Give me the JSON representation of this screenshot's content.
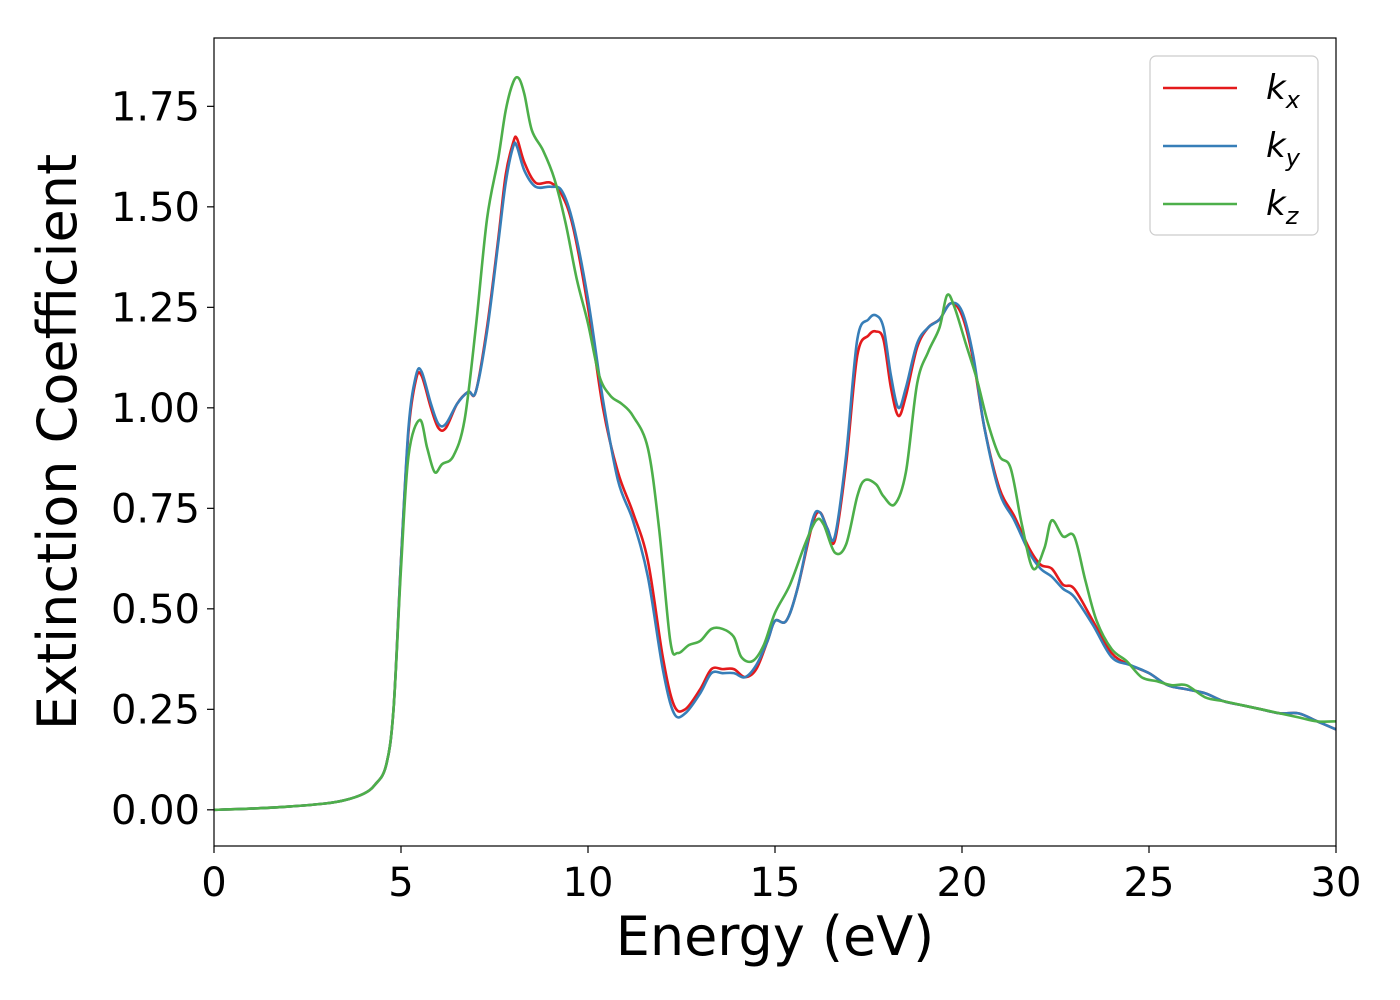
{
  "chart_data": {
    "type": "line",
    "title": "",
    "xlabel": "Energy (eV)",
    "ylabel": "Extinction Coefficient",
    "xlim": [
      0,
      30
    ],
    "ylim": [
      -0.09,
      1.92
    ],
    "xticks": [
      0,
      5,
      10,
      15,
      20,
      25,
      30
    ],
    "xtick_labels": [
      "0",
      "5",
      "10",
      "15",
      "20",
      "25",
      "30"
    ],
    "yticks": [
      0.0,
      0.25,
      0.5,
      0.75,
      1.0,
      1.25,
      1.5,
      1.75
    ],
    "ytick_labels": [
      "0.00",
      "0.25",
      "0.50",
      "0.75",
      "1.00",
      "1.25",
      "1.50",
      "1.75"
    ],
    "grid": false,
    "legend_position": "top-right",
    "series": [
      {
        "name": "k_x",
        "legend_base": "k",
        "legend_sub": "x",
        "color": "#e41a1c",
        "x": [
          0,
          1,
          2,
          3,
          3.5,
          4,
          4.3,
          4.6,
          4.8,
          5.0,
          5.2,
          5.4,
          5.55,
          5.8,
          6.0,
          6.2,
          6.5,
          6.8,
          7.0,
          7.3,
          7.6,
          7.8,
          8.0,
          8.1,
          8.3,
          8.6,
          9.0,
          9.3,
          9.6,
          10.0,
          10.4,
          10.8,
          11.2,
          11.6,
          12.0,
          12.3,
          12.6,
          13.0,
          13.3,
          13.6,
          13.9,
          14.2,
          14.5,
          14.8,
          15.0,
          15.3,
          15.6,
          16.0,
          16.2,
          16.4,
          16.6,
          16.9,
          17.2,
          17.5,
          17.7,
          17.9,
          18.1,
          18.3,
          18.5,
          18.8,
          19.1,
          19.4,
          19.7,
          20.0,
          20.3,
          20.6,
          21.0,
          21.4,
          21.8,
          22.1,
          22.4,
          22.7,
          23.0,
          23.5,
          24.0,
          24.5,
          25.0,
          25.5,
          26.0,
          26.5,
          27.0,
          27.5,
          28.0,
          28.5,
          29.0,
          29.5,
          30
        ],
        "y": [
          0.0,
          0.003,
          0.008,
          0.016,
          0.024,
          0.04,
          0.062,
          0.11,
          0.25,
          0.62,
          0.94,
          1.07,
          1.08,
          1.0,
          0.95,
          0.95,
          1.01,
          1.04,
          1.04,
          1.2,
          1.42,
          1.58,
          1.66,
          1.67,
          1.61,
          1.56,
          1.56,
          1.53,
          1.45,
          1.25,
          1.0,
          0.84,
          0.74,
          0.62,
          0.38,
          0.26,
          0.25,
          0.3,
          0.35,
          0.35,
          0.35,
          0.33,
          0.35,
          0.42,
          0.47,
          0.47,
          0.55,
          0.71,
          0.74,
          0.7,
          0.67,
          0.86,
          1.13,
          1.18,
          1.19,
          1.17,
          1.05,
          0.98,
          1.03,
          1.15,
          1.2,
          1.22,
          1.26,
          1.23,
          1.12,
          0.95,
          0.8,
          0.73,
          0.65,
          0.61,
          0.6,
          0.56,
          0.55,
          0.47,
          0.39,
          0.36,
          0.34,
          0.31,
          0.3,
          0.29,
          0.27,
          0.26,
          0.25,
          0.24,
          0.24,
          0.22,
          0.2
        ]
      },
      {
        "name": "k_y",
        "legend_base": "k",
        "legend_sub": "y",
        "color": "#377eb8",
        "x": [
          0,
          1,
          2,
          3,
          3.5,
          4,
          4.3,
          4.6,
          4.8,
          5.0,
          5.2,
          5.4,
          5.55,
          5.8,
          6.0,
          6.2,
          6.5,
          6.8,
          7.0,
          7.3,
          7.6,
          7.8,
          8.0,
          8.1,
          8.3,
          8.6,
          9.0,
          9.3,
          9.6,
          10.0,
          10.4,
          10.8,
          11.2,
          11.6,
          12.0,
          12.3,
          12.6,
          13.0,
          13.3,
          13.6,
          13.9,
          14.2,
          14.5,
          14.8,
          15.0,
          15.3,
          15.6,
          16.0,
          16.2,
          16.4,
          16.6,
          16.9,
          17.2,
          17.5,
          17.7,
          17.9,
          18.1,
          18.3,
          18.5,
          18.8,
          19.1,
          19.4,
          19.7,
          20.0,
          20.3,
          20.6,
          21.0,
          21.4,
          21.8,
          22.1,
          22.4,
          22.7,
          23.0,
          23.5,
          24.0,
          24.5,
          25.0,
          25.5,
          26.0,
          26.5,
          27.0,
          27.5,
          28.0,
          28.5,
          29.0,
          29.5,
          30
        ],
        "y": [
          0.0,
          0.003,
          0.008,
          0.016,
          0.024,
          0.04,
          0.062,
          0.11,
          0.25,
          0.62,
          0.95,
          1.08,
          1.09,
          1.01,
          0.96,
          0.96,
          1.01,
          1.04,
          1.04,
          1.19,
          1.41,
          1.56,
          1.65,
          1.65,
          1.59,
          1.55,
          1.55,
          1.54,
          1.46,
          1.27,
          1.02,
          0.82,
          0.72,
          0.58,
          0.35,
          0.24,
          0.24,
          0.29,
          0.34,
          0.34,
          0.34,
          0.33,
          0.36,
          0.42,
          0.47,
          0.47,
          0.55,
          0.72,
          0.74,
          0.7,
          0.68,
          0.88,
          1.17,
          1.22,
          1.23,
          1.2,
          1.08,
          1.0,
          1.05,
          1.16,
          1.2,
          1.22,
          1.26,
          1.24,
          1.13,
          0.95,
          0.79,
          0.72,
          0.64,
          0.6,
          0.58,
          0.55,
          0.53,
          0.46,
          0.38,
          0.36,
          0.34,
          0.31,
          0.3,
          0.29,
          0.27,
          0.26,
          0.25,
          0.24,
          0.24,
          0.22,
          0.2
        ]
      },
      {
        "name": "k_z",
        "legend_base": "k",
        "legend_sub": "z",
        "color": "#4daf4a",
        "x": [
          0,
          1,
          2,
          3,
          3.5,
          4,
          4.3,
          4.6,
          4.8,
          5.0,
          5.2,
          5.5,
          5.7,
          5.9,
          6.1,
          6.4,
          6.7,
          7.0,
          7.3,
          7.6,
          7.8,
          8.0,
          8.15,
          8.3,
          8.5,
          8.8,
          9.1,
          9.4,
          9.7,
          10.0,
          10.3,
          10.6,
          10.9,
          11.2,
          11.6,
          11.9,
          12.2,
          12.4,
          12.7,
          13.0,
          13.3,
          13.6,
          13.9,
          14.1,
          14.4,
          14.7,
          15.0,
          15.4,
          15.8,
          16.1,
          16.3,
          16.6,
          16.9,
          17.2,
          17.4,
          17.7,
          17.9,
          18.2,
          18.5,
          18.8,
          19.1,
          19.4,
          19.6,
          19.8,
          20.1,
          20.4,
          20.7,
          21.0,
          21.3,
          21.6,
          21.9,
          22.2,
          22.4,
          22.7,
          23.0,
          23.3,
          23.6,
          24.0,
          24.4,
          24.8,
          25.2,
          25.6,
          26.0,
          26.5,
          27.0,
          27.5,
          28.0,
          28.5,
          29.0,
          29.5,
          30
        ],
        "y": [
          0.0,
          0.003,
          0.008,
          0.016,
          0.024,
          0.04,
          0.062,
          0.11,
          0.25,
          0.6,
          0.88,
          0.97,
          0.9,
          0.84,
          0.86,
          0.88,
          0.97,
          1.2,
          1.47,
          1.62,
          1.74,
          1.81,
          1.82,
          1.78,
          1.69,
          1.64,
          1.57,
          1.46,
          1.32,
          1.21,
          1.08,
          1.03,
          1.01,
          0.98,
          0.9,
          0.7,
          0.42,
          0.39,
          0.41,
          0.42,
          0.45,
          0.45,
          0.43,
          0.38,
          0.37,
          0.41,
          0.49,
          0.56,
          0.66,
          0.72,
          0.71,
          0.64,
          0.66,
          0.78,
          0.82,
          0.81,
          0.78,
          0.76,
          0.84,
          1.06,
          1.14,
          1.2,
          1.28,
          1.25,
          1.16,
          1.07,
          0.96,
          0.88,
          0.85,
          0.71,
          0.6,
          0.65,
          0.72,
          0.68,
          0.68,
          0.57,
          0.47,
          0.4,
          0.37,
          0.33,
          0.32,
          0.31,
          0.31,
          0.28,
          0.27,
          0.26,
          0.25,
          0.24,
          0.23,
          0.22,
          0.22
        ]
      }
    ]
  }
}
